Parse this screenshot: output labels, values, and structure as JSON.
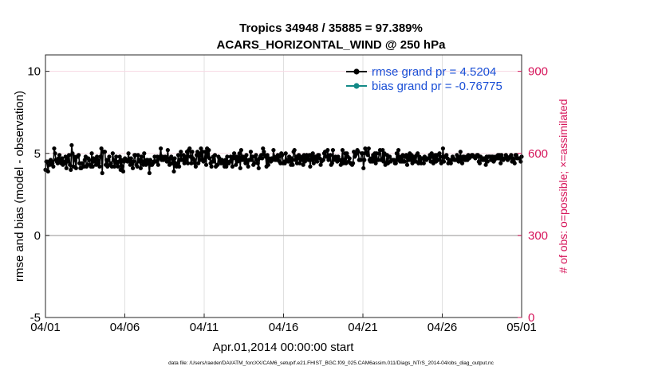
{
  "chart_data": {
    "type": "line",
    "title_line1": "Tropics 34948 / 35885 = 97.389%",
    "title_line2": "ACARS_HORIZONTAL_WIND @ 250 hPa",
    "xlabel": "Apr.01,2014 00:00:00 start",
    "ylabel_left": "rmse and bias (model - observation)",
    "ylabel_right": "# of obs: o=possible; ×=assimilated",
    "x_ticks": [
      "04/01",
      "04/06",
      "04/11",
      "04/16",
      "04/21",
      "04/26",
      "05/01"
    ],
    "x_range_days": [
      0,
      30
    ],
    "ylim_left": [
      -5,
      11
    ],
    "y_ticks_left": [
      "-5",
      "0",
      "5",
      "10"
    ],
    "ylim_right": [
      0,
      960
    ],
    "y_ticks_right": [
      "0",
      "300",
      "600",
      "900"
    ],
    "legend": {
      "rmse_label": "rmse grand pr = 4.5204",
      "bias_label": "bias grand pr = -0.76775",
      "position": "top-right"
    },
    "series": [
      {
        "name": "rmse",
        "axis": "left",
        "color": "#000000",
        "values": [
          4.0,
          4.5,
          4.5,
          3.9,
          4.5,
          4.3,
          4.6,
          4.5,
          4.4,
          4.2,
          5.3,
          5.0,
          4.6,
          4.5,
          4.4,
          4.7,
          4.9,
          4.5,
          4.4,
          4.7,
          4.3,
          4.5,
          4.4,
          4.8,
          4.1,
          4.7,
          4.5,
          4.9,
          4.3,
          4.0,
          5.5,
          5.0,
          4.2,
          4.8,
          4.6,
          4.1,
          4.8,
          4.8,
          4.9,
          4.4,
          4.1,
          4.1,
          4.4,
          4.3,
          4.2,
          4.6,
          4.8,
          4.2,
          4.3,
          4.7,
          4.6,
          4.3,
          4.2,
          5.0,
          4.2,
          4.7,
          4.5,
          4.6,
          4.3,
          4.8,
          4.6,
          4.4,
          4.2,
          4.8,
          5.3,
          3.8,
          5.1,
          5.1,
          5.1,
          4.3,
          4.6,
          4.2,
          4.6,
          4.8,
          4.3,
          4.4,
          4.2,
          5.0,
          4.6,
          4.2,
          4.5,
          4.8,
          4.4,
          4.2,
          4.5,
          4.8,
          4.0,
          4.6,
          4.2,
          3.9,
          4.5,
          4.7,
          4.6,
          4.6,
          4.5,
          5.0,
          4.6,
          4.3,
          4.7,
          4.5,
          4.1,
          4.5,
          4.9,
          4.9,
          4.3,
          4.2,
          4.9,
          4.5,
          4.6,
          4.1,
          4.8,
          4.5,
          4.3,
          5.0,
          4.4,
          4.3,
          4.6,
          4.6,
          4.4,
          3.8,
          4.6,
          4.3,
          4.3,
          4.4,
          4.5,
          4.8,
          4.5,
          4.5,
          4.8,
          4.3,
          4.7,
          4.8,
          5.3,
          4.6,
          4.8,
          4.6,
          4.7,
          4.8,
          4.7,
          4.5,
          5.2,
          4.5,
          4.3,
          4.7,
          4.8,
          4.4,
          4.6,
          3.9,
          4.7,
          4.4,
          4.2,
          4.3,
          4.9,
          4.2,
          4.6,
          5.1,
          4.6,
          4.6,
          4.9,
          4.4,
          4.8,
          4.6,
          5.1,
          4.4,
          5.2,
          5.3,
          4.8,
          4.4,
          5.1,
          4.7,
          4.6,
          4.4,
          4.2,
          4.9,
          5.1,
          4.4,
          5.0,
          4.6,
          5.3,
          4.6,
          5.1,
          4.5,
          4.6,
          5.1,
          4.3,
          5.3,
          4.8,
          5.2,
          4.7,
          4.4,
          4.2,
          4.5,
          4.8,
          4.5,
          4.9,
          4.2,
          4.3,
          4.3,
          4.8,
          4.7,
          4.5,
          4.4,
          4.6,
          4.4,
          4.5,
          4.2,
          4.6,
          4.2,
          4.8,
          4.4,
          4.4,
          4.5,
          4.8,
          4.6,
          4.2,
          4.8,
          5.0,
          4.7,
          4.3,
          4.8,
          4.5,
          4.6,
          5.0,
          4.1,
          5.2,
          4.6,
          4.8,
          4.6,
          4.7,
          4.4,
          4.9,
          4.5,
          4.2,
          4.6,
          4.6,
          5.1,
          4.6,
          4.8,
          4.3,
          4.4,
          4.8,
          4.9,
          4.6,
          4.4,
          4.1,
          4.7,
          4.8,
          4.9,
          4.7,
          5.3,
          5.1,
          4.9,
          4.8,
          4.2,
          4.9,
          4.3,
          4.7,
          4.6,
          4.5,
          4.7,
          4.6,
          5.2,
          4.8,
          4.6,
          4.7,
          4.6,
          4.9,
          4.8,
          4.5,
          4.4,
          5.0,
          4.9,
          4.4,
          4.5,
          4.4,
          5.0,
          4.6,
          4.6,
          4.5,
          4.8,
          4.6,
          4.3,
          4.7,
          4.3,
          5.1,
          5.2,
          4.6,
          4.8,
          4.4,
          4.7,
          4.9,
          4.4,
          4.7,
          4.6,
          4.8,
          4.3,
          4.9,
          4.5,
          4.7,
          4.9,
          4.7,
          4.6,
          4.9,
          4.2,
          4.9,
          4.6,
          5.0,
          4.4,
          4.8,
          4.8,
          4.6,
          4.5,
          4.9,
          4.9,
          4.7,
          4.3,
          4.5,
          4.6,
          4.6,
          5.0,
          5.1,
          4.8,
          4.8,
          5.2,
          4.6,
          4.8,
          4.9,
          4.3,
          4.4,
          5.2,
          4.6,
          4.7,
          4.8,
          4.6,
          4.5,
          4.8,
          4.6,
          4.6,
          4.3,
          4.6,
          5.2,
          4.4,
          4.6,
          5.0,
          4.4,
          5.0,
          4.8,
          4.5,
          4.7,
          4.4,
          4.4,
          4.3,
          4.4,
          5.1,
          4.8,
          4.9,
          5.0,
          5.2,
          5.1,
          4.6,
          4.6,
          4.6,
          5.0,
          5.0,
          4.1,
          4.6,
          5.3,
          5.1,
          5.0,
          4.9,
          5.3,
          4.6,
          4.5,
          4.7,
          4.5,
          4.9,
          4.6,
          5.0,
          4.4,
          5.0,
          4.6,
          4.6,
          5.0,
          5.2,
          4.6,
          4.6,
          5.2,
          4.5,
          5.0,
          4.3,
          4.4,
          4.9,
          4.4,
          4.8,
          4.8,
          4.5,
          4.6,
          4.6,
          4.6,
          4.6,
          4.4,
          4.4,
          5.0,
          4.6,
          5.2,
          4.7,
          4.5,
          4.8,
          4.5,
          4.9,
          4.5,
          4.5,
          4.8,
          4.9,
          4.3,
          4.8,
          4.6,
          5.0,
          4.6,
          4.9,
          4.4,
          4.8,
          4.5,
          4.8,
          4.5,
          4.9,
          5.0,
          4.4,
          4.8,
          4.6,
          4.4,
          4.7,
          4.7,
          4.4,
          4.8,
          4.7,
          4.6,
          4.7,
          4.7,
          4.7,
          4.9,
          4.5,
          5.0,
          4.8,
          4.4,
          4.6,
          4.9,
          4.5,
          4.9,
          4.6,
          4.6,
          5.0,
          4.8,
          4.4,
          4.5,
          5.3,
          4.5,
          4.8,
          4.8,
          4.9,
          4.7,
          4.4,
          4.6,
          4.6,
          4.4,
          4.6,
          4.8,
          4.7,
          4.6,
          4.6,
          4.6,
          4.9,
          4.8,
          4.5,
          4.6,
          5.1,
          4.6,
          4.4,
          4.8,
          4.8,
          4.6,
          4.6,
          4.8,
          4.6,
          4.9,
          4.7,
          4.8,
          4.8,
          4.9,
          4.9,
          4.8,
          4.8,
          4.7,
          4.8,
          4.9,
          4.9,
          4.5,
          4.4,
          4.8,
          4.7,
          4.6,
          4.7,
          4.6,
          4.7,
          4.3,
          4.8,
          4.5,
          4.8,
          4.8,
          4.8,
          4.6,
          4.8,
          4.8,
          4.5,
          4.6,
          4.8,
          4.7,
          4.7,
          4.9,
          4.7,
          4.9,
          4.4,
          4.9,
          4.7,
          4.6,
          4.7,
          4.7,
          4.9,
          4.8,
          4.6,
          4.7,
          4.7,
          4.8,
          4.9,
          4.5,
          4.7,
          4.5,
          4.4,
          4.9,
          4.9,
          4.7,
          4.7,
          4.7,
          4.7,
          4.5,
          4.8
        ]
      },
      {
        "name": "bias",
        "axis": "left",
        "color": "#138a87",
        "values": []
      },
      {
        "name": "obs possible",
        "axis": "right",
        "color": "#d6145a",
        "marker": "o",
        "values": []
      },
      {
        "name": "obs assimilated",
        "axis": "right",
        "color": "#d6145a",
        "marker": "*",
        "values": []
      }
    ]
  },
  "footer": "data file: /Users/raeder/DAI/ATM_forcXX/CAM6_setup/f.e21.FHIST_BGC.f09_025.CAM6assim.011/Diags_NTrS_2014-04/obs_diag_output.nc"
}
